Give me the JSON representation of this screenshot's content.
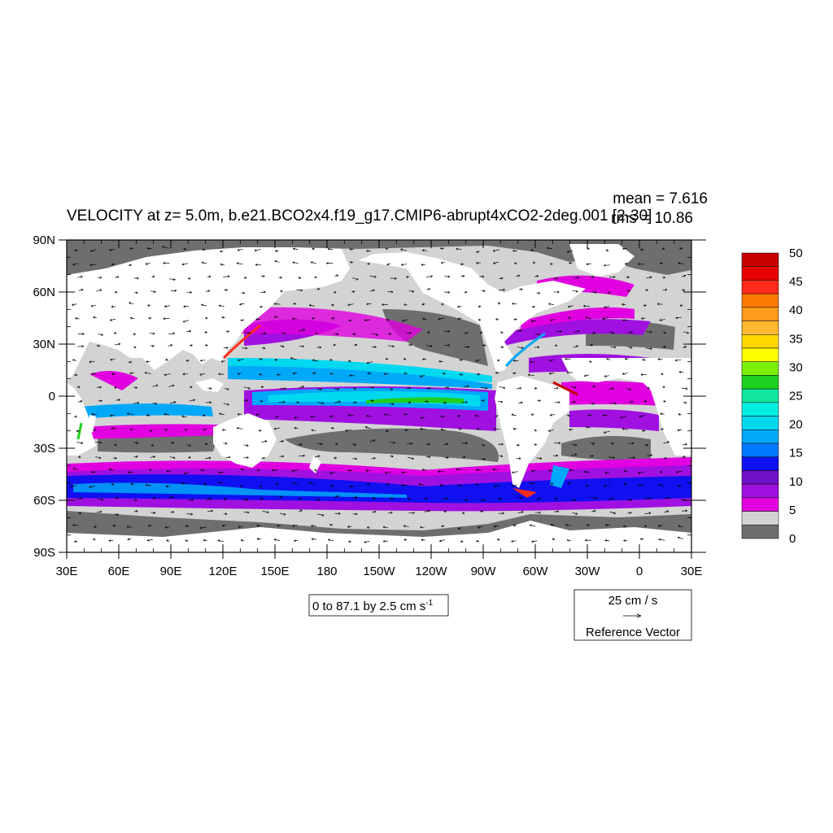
{
  "chart_data": {
    "type": "heatmap",
    "title": "VELOCITY at z=   5.0m, b.e21.BCO2x4.f19_g17.CMIP6-abrupt4xCO2-2deg.001 [2-30]",
    "stats": {
      "mean": "mean = 7.616",
      "rms": "rms = 10.86"
    },
    "x_ticks": [
      "30E",
      "60E",
      "90E",
      "120E",
      "150E",
      "180",
      "150W",
      "120W",
      "90W",
      "60W",
      "30W",
      "0",
      "30E"
    ],
    "y_ticks": [
      "90N",
      "60N",
      "30N",
      "0",
      "30S",
      "60S",
      "90S"
    ],
    "xlim": [
      30,
      390
    ],
    "ylim": [
      -90,
      90
    ],
    "contour_info": "0 to 87.1 by 2.5 cm s",
    "contour_info_sup": "-1",
    "colorbar": {
      "labels": [
        "50",
        "45",
        "40",
        "35",
        "30",
        "25",
        "20",
        "15",
        "10",
        "5",
        "0"
      ],
      "colors": [
        "#c80000",
        "#e60000",
        "#ff2a1a",
        "#ff7a00",
        "#ff9a1a",
        "#ffb830",
        "#ffd800",
        "#ffff00",
        "#7af000",
        "#20d020",
        "#10e6a0",
        "#00f0e0",
        "#00d8f0",
        "#00a8f8",
        "#0078ff",
        "#1010f0",
        "#7010c8",
        "#a010e0",
        "#e000e0",
        "#d3d3d3",
        "#6e6e6e"
      ]
    },
    "reference_vector": {
      "value": "25 cm / s",
      "label": "Reference Vector"
    }
  }
}
